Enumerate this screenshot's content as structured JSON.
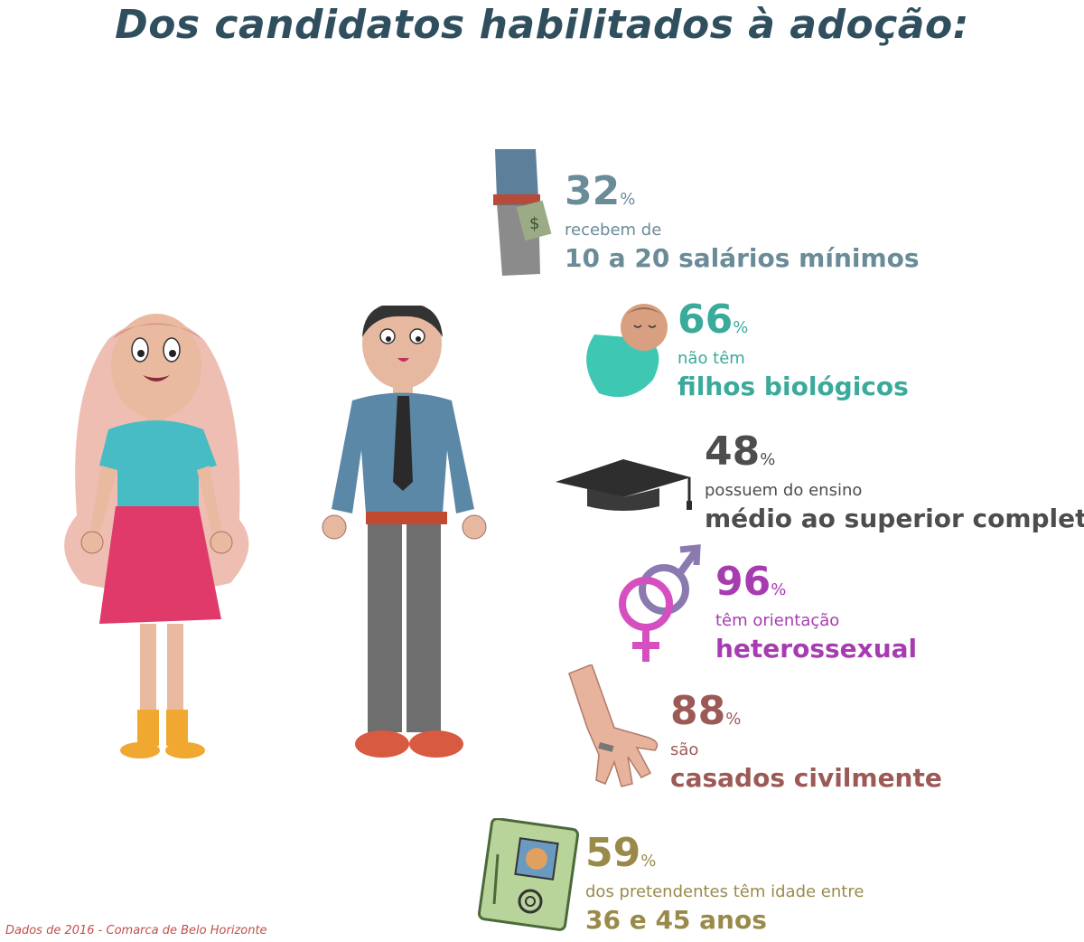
{
  "title": "Dos candidatos habilitados à adoção:",
  "stats": [
    {
      "pct": "32",
      "sign": "%",
      "sub": "recebem de",
      "big": "10 a 20 salários mínimos",
      "color": "#6a8b98",
      "icon": "money-hand-icon"
    },
    {
      "pct": "66",
      "sign": "%",
      "sub": "não têm",
      "big": "filhos biológicos",
      "color": "#3aaa9b",
      "icon": "baby-icon"
    },
    {
      "pct": "48",
      "sign": "%",
      "sub": "possuem do ensino",
      "big": "médio ao superior completo",
      "color": "#4d4d4d",
      "icon": "graduation-cap-icon"
    },
    {
      "pct": "96",
      "sign": "%",
      "sub": "têm orientação",
      "big": "heterossexual",
      "color": "#a63cb0",
      "icon": "gender-symbols-icon"
    },
    {
      "pct": "88",
      "sign": "%",
      "sub": "são",
      "big": "casados civilmente",
      "color": "#9c5a57",
      "icon": "wedding-ring-hand-icon"
    },
    {
      "pct": "59",
      "sign": "%",
      "sub": "dos pretendentes têm idade entre",
      "big": "36 e 45 anos",
      "color": "#9a8a4a",
      "icon": "id-card-icon"
    }
  ],
  "footnote": "Dados de 2016 - Comarca de Belo Horizonte"
}
